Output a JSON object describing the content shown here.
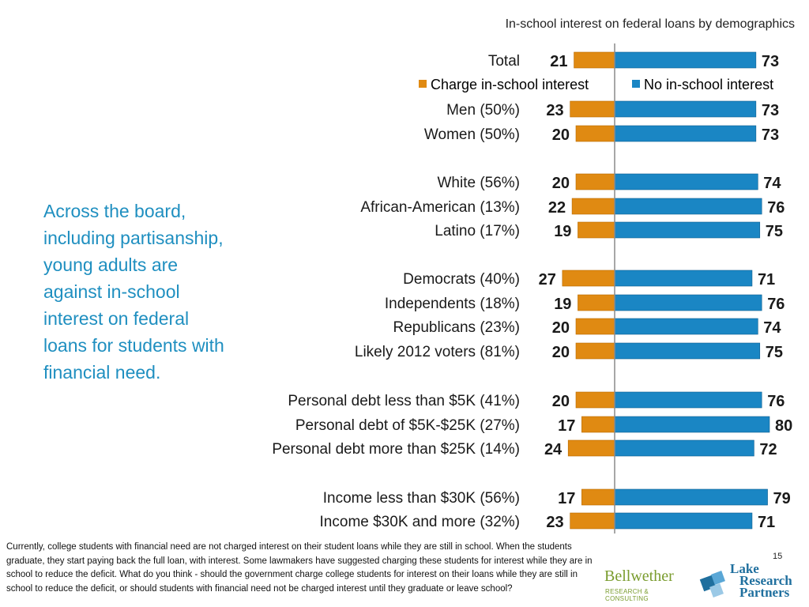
{
  "chart_title": "In-school interest on federal loans by demographics",
  "side_text": "Across the board, including partisanship, young adults are against in-school interest on federal loans for students with financial need.",
  "footnote": "Currently, college students with financial need are not charged interest on their student loans while they are still in school. When the students graduate, they start paying back the full loan, with interest. Some lawmakers have suggested charging these students for interest while they are in school to reduce the deficit. What do you think - should the government charge college students for interest on their loans while they are still in school to reduce the deficit, or should students with financial need not be charged interest until they graduate or leave school?",
  "page_number": "15",
  "logos": {
    "bellwether_name": "Bellwether",
    "bellwether_sub": "RESEARCH & CONSULTING",
    "lrp_line1": "Lake",
    "lrp_line2": "Research",
    "lrp_line3": "Partners"
  },
  "colors": {
    "charge": "#e08a12",
    "no_charge": "#1a86c4"
  },
  "chart_data": {
    "type": "bar",
    "orientation": "horizontal-diverging",
    "title": "In-school interest on federal loans by demographics",
    "legend": [
      "Charge in-school interest",
      "No in-school interest"
    ],
    "legend_position": "top",
    "categories": [
      "Total",
      "Men (50%)",
      "Women (50%)",
      "White (56%)",
      "African-American (13%)",
      "Latino (17%)",
      "Democrats (40%)",
      "Independents (18%)",
      "Republicans (23%)",
      "Likely 2012 voters (81%)",
      "Personal debt less than $5K (41%)",
      "Personal debt of $5K-$25K (27%)",
      "Personal debt more than $25K (14%)",
      "Income less than $30K (56%)",
      "Income $30K and more (32%)"
    ],
    "series": [
      {
        "name": "Charge in-school interest",
        "values": [
          21,
          23,
          20,
          20,
          22,
          19,
          27,
          19,
          20,
          20,
          20,
          17,
          24,
          17,
          23
        ]
      },
      {
        "name": "No in-school interest",
        "values": [
          73,
          73,
          73,
          74,
          76,
          75,
          71,
          76,
          74,
          75,
          76,
          80,
          72,
          79,
          71
        ]
      }
    ]
  }
}
